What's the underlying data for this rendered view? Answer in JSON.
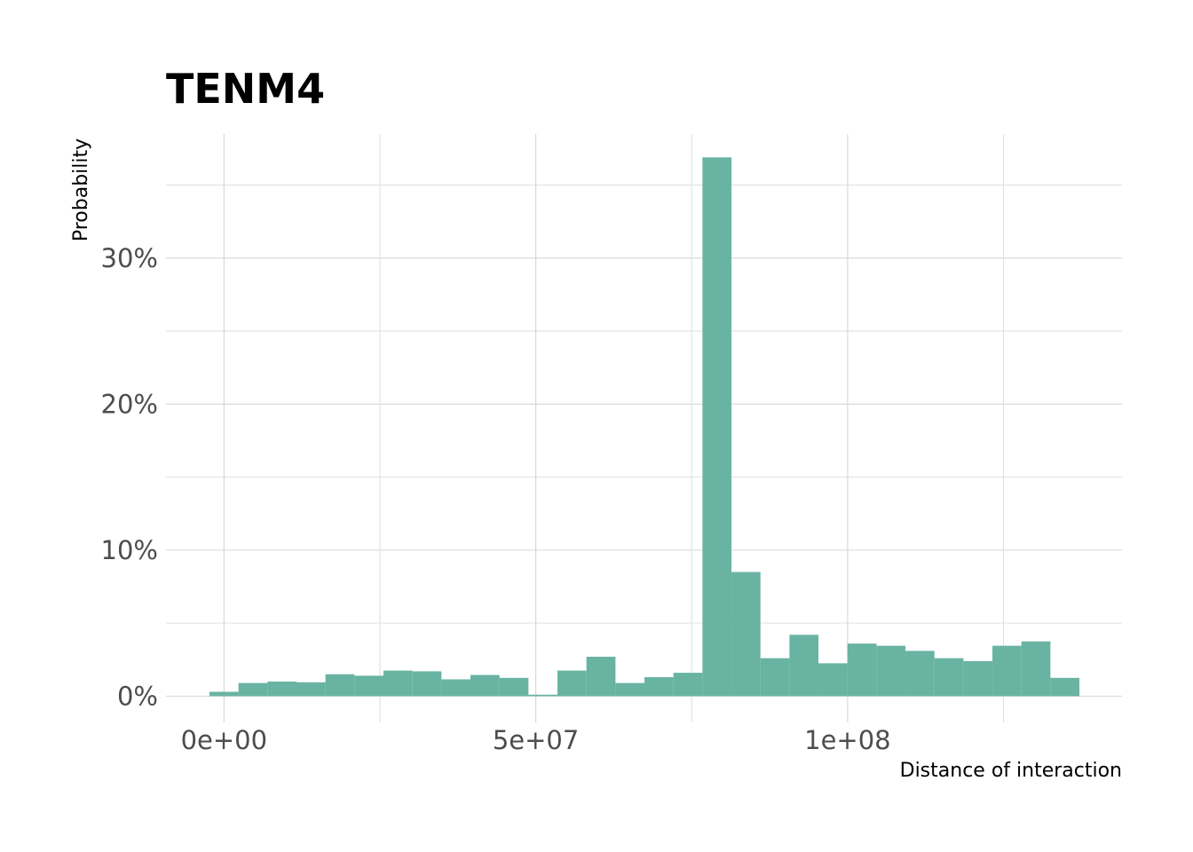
{
  "chart_data": {
    "type": "bar",
    "title": "TENM4",
    "xlabel": "Distance of interaction",
    "ylabel": "Probability",
    "bar_color": "#69b3a2",
    "grid": true,
    "legend": "none",
    "xlim": [
      -9300000,
      144000000
    ],
    "ylim": [
      -0.018,
      0.385
    ],
    "x_ticks": [
      0,
      50000000,
      100000000
    ],
    "x_tick_labels": [
      "0e+00",
      "5e+07",
      "1e+08"
    ],
    "y_ticks": [
      0,
      0.1,
      0.2,
      0.3
    ],
    "y_tick_labels": [
      "0%",
      "10%",
      "20%",
      "30%"
    ],
    "bin_width": 4650000,
    "bin_centers": [
      0,
      4650000,
      9300000,
      13950000,
      18600000,
      23250000,
      27900000,
      32550000,
      37200000,
      41850000,
      46500000,
      51150000,
      55800000,
      60450000,
      65100000,
      69750000,
      74400000,
      79050000,
      83700000,
      88350000,
      93000000,
      97650000,
      102300000,
      106950000,
      111600000,
      116250000,
      120900000,
      125550000,
      130200000,
      134850000
    ],
    "values": [
      0.003,
      0.009,
      0.01,
      0.0095,
      0.015,
      0.014,
      0.0175,
      0.017,
      0.0115,
      0.0145,
      0.0125,
      0.001,
      0.0175,
      0.027,
      0.009,
      0.013,
      0.016,
      0.369,
      0.085,
      0.026,
      0.042,
      0.0225,
      0.036,
      0.0345,
      0.031,
      0.026,
      0.024,
      0.0345,
      0.0375,
      0.0125
    ]
  }
}
